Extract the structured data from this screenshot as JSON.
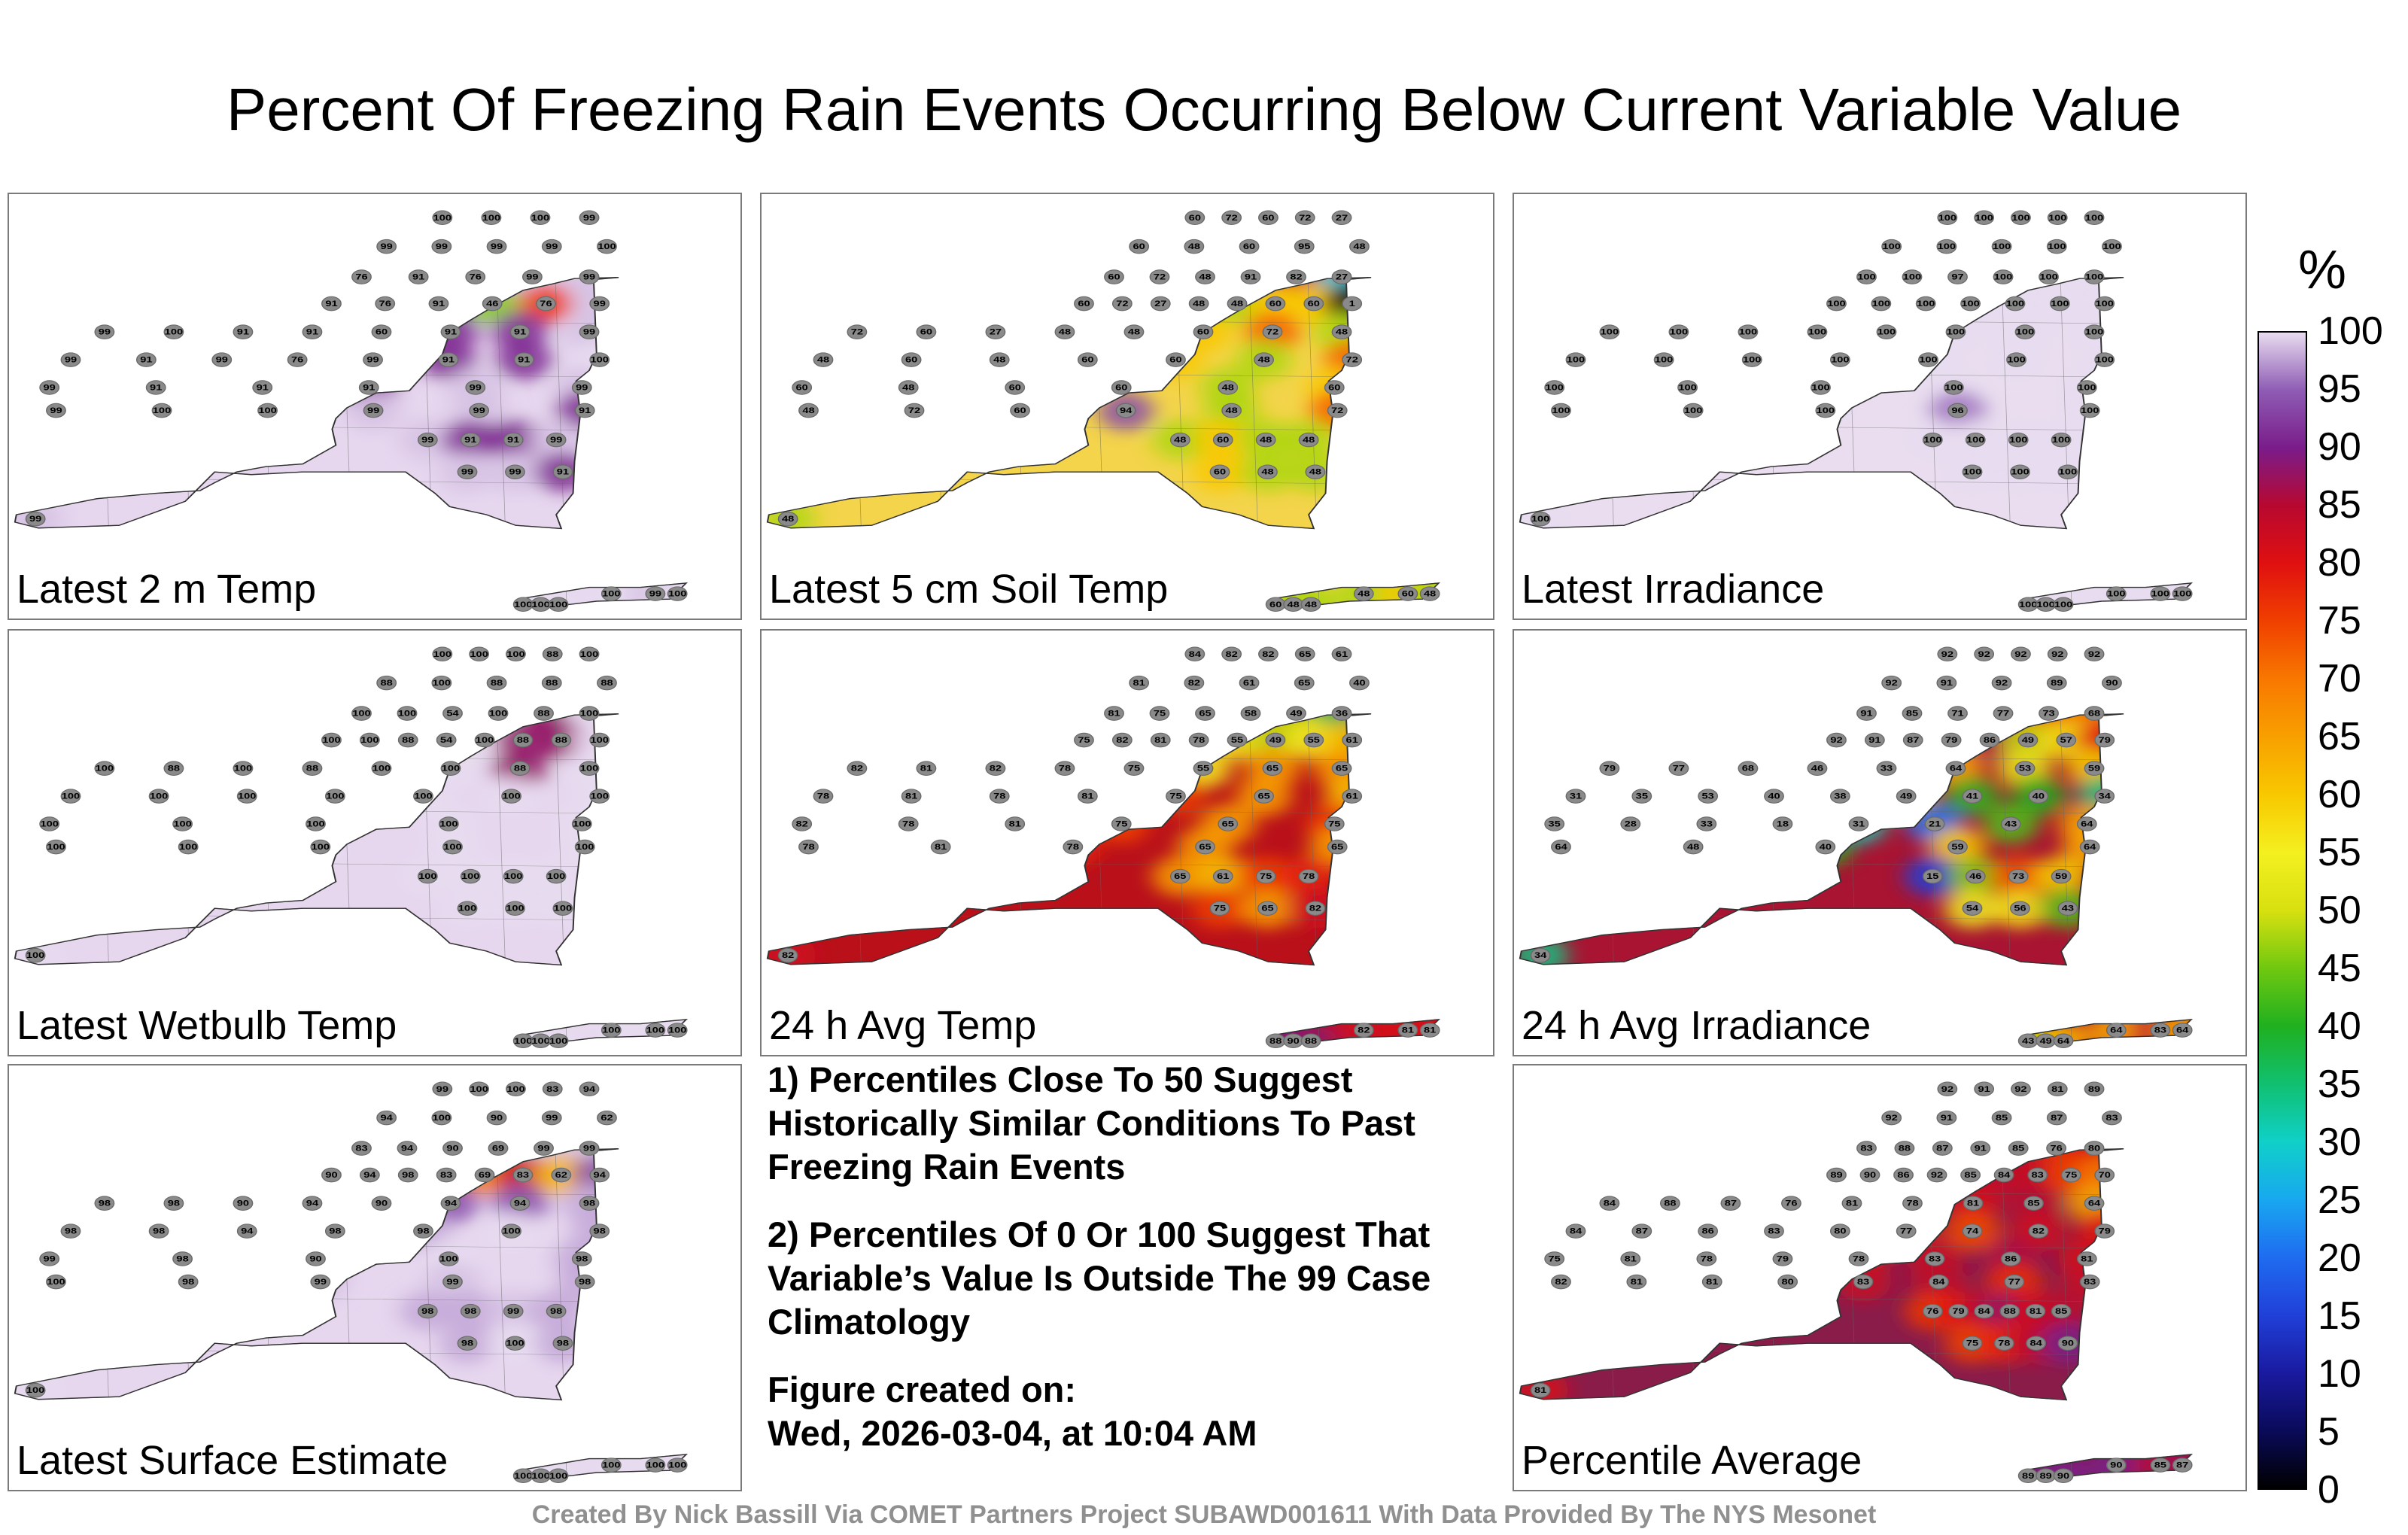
{
  "title": "Percent Of Freezing Rain Events Occurring Below Current Variable Value",
  "panels": [
    {
      "label": "Latest 2 m Temp",
      "base": "#e6d6ee",
      "stations": [
        [
          [
            99
          ]
        ],
        [
          [
            100,
            100,
            100,
            99
          ],
          [
            99,
            99,
            99,
            99,
            100
          ],
          [
            76,
            91,
            76,
            99,
            99
          ],
          [
            91,
            76,
            91,
            46,
            76,
            99
          ],
          [
            99,
            100,
            91,
            91,
            60,
            91,
            91,
            99
          ],
          [
            99,
            91,
            99,
            76,
            99,
            91,
            91,
            100
          ],
          [
            99,
            91,
            91,
            91,
            99,
            99
          ],
          [
            99,
            100,
            100,
            99,
            99,
            91
          ],
          [
            99,
            91,
            91,
            99
          ],
          [
            99,
            99,
            91
          ]
        ],
        [
          [
            100,
            100,
            100,
            100,
            99,
            100
          ]
        ]
      ]
    },
    {
      "label": "Latest 5 cm Soil Temp",
      "base": "#f3d44a",
      "stations": [
        [
          [
            48
          ]
        ],
        [
          [
            60,
            72,
            60,
            72,
            27
          ],
          [
            60,
            48,
            60,
            95,
            48
          ],
          [
            60,
            72,
            48,
            91,
            82,
            27
          ],
          [
            60,
            72,
            27,
            48,
            48,
            60,
            60,
            1
          ],
          [
            72,
            60,
            27,
            48,
            48,
            60,
            72,
            48
          ],
          [
            48,
            60,
            48,
            60,
            60,
            48,
            72
          ],
          [
            60,
            48,
            60,
            60,
            48,
            60
          ],
          [
            48,
            72,
            60,
            94,
            48,
            72
          ],
          [
            48,
            60,
            48,
            48
          ],
          [
            60,
            48,
            48
          ]
        ],
        [
          [
            60,
            48,
            48,
            48,
            60,
            48
          ]
        ]
      ]
    },
    {
      "label": "Latest Irradiance",
      "base": "#e9ddef",
      "stations": [
        [
          [
            100
          ]
        ],
        [
          [
            100,
            100,
            100,
            100,
            100
          ],
          [
            100,
            100,
            100,
            100,
            100
          ],
          [
            100,
            100,
            97,
            100,
            100,
            100
          ],
          [
            100,
            100,
            100,
            100,
            100,
            100,
            100
          ],
          [
            100,
            100,
            100,
            100,
            100,
            100,
            100,
            100
          ],
          [
            100,
            100,
            100,
            100,
            100,
            100,
            100
          ],
          [
            100,
            100,
            100,
            100,
            100
          ],
          [
            100,
            100,
            100,
            96,
            100
          ],
          [
            100,
            100,
            100,
            100
          ],
          [
            100,
            100,
            100
          ]
        ],
        [
          [
            100,
            100,
            100,
            100,
            100,
            100
          ]
        ]
      ]
    },
    {
      "label": "Latest Wetbulb Temp",
      "base": "#e6d6ee",
      "stations": [
        [
          [
            100
          ]
        ],
        [
          [
            100,
            100,
            100,
            88,
            100
          ],
          [
            88,
            100,
            88,
            88,
            88
          ],
          [
            100,
            100,
            54,
            100,
            88,
            100
          ],
          [
            100,
            100,
            88,
            54,
            100,
            88,
            88,
            100
          ],
          [
            100,
            88,
            100,
            88,
            100,
            100,
            88,
            100
          ],
          [
            100,
            100,
            100,
            100,
            100,
            100,
            100
          ],
          [
            100,
            100,
            100,
            100,
            100
          ],
          [
            100,
            100,
            100,
            100,
            100
          ],
          [
            100,
            100,
            100,
            100
          ],
          [
            100,
            100,
            100
          ]
        ],
        [
          [
            100,
            100,
            100,
            100,
            100,
            100
          ]
        ]
      ]
    },
    {
      "label": "24 h Avg Temp",
      "base": "#b9101a",
      "stations": [
        [
          [
            82
          ]
        ],
        [
          [
            84,
            82,
            82,
            65,
            61
          ],
          [
            81,
            82,
            61,
            65,
            40
          ],
          [
            81,
            75,
            65,
            58,
            49,
            36
          ],
          [
            75,
            82,
            81,
            78,
            55,
            49,
            55,
            61
          ],
          [
            82,
            81,
            82,
            78,
            75,
            55,
            65,
            65
          ],
          [
            78,
            81,
            78,
            81,
            75,
            65,
            61
          ],
          [
            82,
            78,
            81,
            75,
            65,
            75
          ],
          [
            78,
            81,
            78,
            65,
            65
          ],
          [
            65,
            61,
            75,
            78
          ],
          [
            75,
            65,
            82
          ]
        ],
        [
          [
            88,
            90,
            88,
            82,
            81,
            81
          ]
        ]
      ]
    },
    {
      "label": "24 h Avg Irradiance",
      "base": "#a81432",
      "stations": [
        [
          [
            34
          ]
        ],
        [
          [
            92,
            92,
            92,
            92,
            92
          ],
          [
            92,
            91,
            92,
            89,
            90
          ],
          [
            91,
            85,
            71,
            77,
            73,
            68
          ],
          [
            92,
            91,
            87,
            79,
            86,
            49,
            57,
            79
          ],
          [
            79,
            77,
            68,
            46,
            33,
            64,
            53,
            59
          ],
          [
            31,
            35,
            53,
            40,
            38,
            49,
            41,
            40,
            34
          ],
          [
            35,
            28,
            33,
            18,
            31,
            21,
            43,
            64
          ],
          [
            64,
            48,
            40,
            59,
            64
          ],
          [
            15,
            46,
            73,
            59
          ],
          [
            54,
            56,
            43
          ]
        ],
        [
          [
            43,
            49,
            64,
            64,
            83,
            64
          ]
        ]
      ]
    },
    {
      "label": "Latest Surface Estimate",
      "base": "#e6d6ee",
      "stations": [
        [
          [
            100
          ]
        ],
        [
          [
            99,
            100,
            100,
            83,
            94
          ],
          [
            94,
            100,
            90,
            99,
            62
          ],
          [
            83,
            94,
            90,
            69,
            99,
            99
          ],
          [
            90,
            94,
            98,
            83,
            69,
            83,
            62,
            94
          ],
          [
            98,
            98,
            90,
            94,
            90,
            94,
            94,
            98
          ],
          [
            98,
            98,
            94,
            98,
            98,
            100,
            98
          ],
          [
            99,
            98,
            90,
            100,
            98
          ],
          [
            100,
            98,
            99,
            99,
            98
          ],
          [
            98,
            98,
            99,
            98
          ],
          [
            98,
            100,
            98
          ]
        ],
        [
          [
            100,
            100,
            100,
            100,
            100,
            100
          ]
        ]
      ]
    },
    {
      "label": "Percentile Average",
      "base": "#8a1c4a",
      "stations": [
        [
          [
            81
          ]
        ],
        [
          [
            92,
            91,
            92,
            81,
            89
          ],
          [
            92,
            91,
            85,
            87,
            83
          ],
          [
            83,
            88,
            87,
            91,
            85,
            76,
            80
          ],
          [
            89,
            90,
            86,
            92,
            85,
            84,
            83,
            75,
            70
          ],
          [
            84,
            88,
            87,
            76,
            81,
            78,
            81,
            85,
            64
          ],
          [
            84,
            87,
            86,
            83,
            80,
            77,
            74,
            82,
            79
          ],
          [
            75,
            81,
            78,
            79,
            78,
            83,
            86,
            81
          ],
          [
            82,
            81,
            81,
            80,
            83,
            84,
            77,
            83
          ],
          [
            76,
            79,
            84,
            88,
            81,
            85
          ],
          [
            75,
            78,
            84,
            90
          ]
        ],
        [
          [
            89,
            89,
            90,
            90,
            85,
            87
          ]
        ]
      ]
    }
  ],
  "notes": {
    "note1": "1) Percentiles Close To 50 Suggest Historically Similar Conditions To Past Freezing Rain Events",
    "note2": "2) Percentiles Of 0 Or 100 Suggest That Variable’s Value Is Outside The 99 Case Climatology",
    "created_label": "Figure created on:",
    "created_date": "Wed, 2026-03-04, at 10:04 AM"
  },
  "footer": "Created By Nick Bassill Via COMET Partners Project SUBAWD001611 With Data Provided By The NYS Mesonet",
  "chart_data": {
    "type": "heatmap",
    "title": "Percent Of Freezing Rain Events Occurring Below Current Variable Value",
    "colorbar": {
      "unit": "%",
      "range": [
        0,
        100
      ],
      "ticks": [
        0,
        5,
        10,
        15,
        20,
        25,
        30,
        35,
        40,
        45,
        50,
        55,
        60,
        65,
        70,
        75,
        80,
        85,
        90,
        95,
        100
      ],
      "colors": [
        "#000000",
        "#0a0a5a",
        "#1a1aa0",
        "#2040d8",
        "#1f6cf0",
        "#18a8f0",
        "#10d0c8",
        "#10c070",
        "#20b020",
        "#70c810",
        "#d8e010",
        "#f4f020",
        "#f8c800",
        "#f8a000",
        "#f87800",
        "#f04000",
        "#e01010",
        "#b80830",
        "#7a1c8a",
        "#8e5cb4",
        "#e8dcf0"
      ]
    },
    "panels": [
      "Latest 2 m Temp",
      "Latest 5 cm Soil Temp",
      "Latest Irradiance",
      "Latest Wetbulb Temp",
      "24 h Avg Temp",
      "24 h Avg Irradiance",
      "Latest Surface Estimate",
      "Percentile Average"
    ]
  }
}
